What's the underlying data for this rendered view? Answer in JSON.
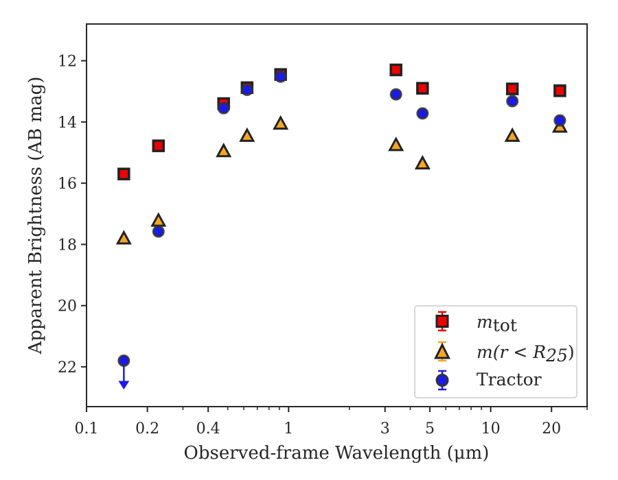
{
  "chart_data": {
    "type": "scatter",
    "xlabel": "Observed-frame Wavelength (μm)",
    "ylabel": "Apparent Brightness (AB mag)",
    "xscale": "log",
    "xlim": [
      0.1,
      30
    ],
    "ylim": [
      23.3,
      10.8
    ],
    "y_inverted": true,
    "xticks": [
      {
        "value": 0.1,
        "label": "0.1"
      },
      {
        "value": 0.2,
        "label": "0.2"
      },
      {
        "value": 0.4,
        "label": "0.4"
      },
      {
        "value": 1,
        "label": "1"
      },
      {
        "value": 3,
        "label": "3"
      },
      {
        "value": 5,
        "label": "5"
      },
      {
        "value": 10,
        "label": "10"
      },
      {
        "value": 20,
        "label": "20"
      }
    ],
    "yticks": [
      {
        "value": 12,
        "label": "12"
      },
      {
        "value": 14,
        "label": "14"
      },
      {
        "value": 16,
        "label": "16"
      },
      {
        "value": 18,
        "label": "18"
      },
      {
        "value": 20,
        "label": "20"
      },
      {
        "value": 22,
        "label": "22"
      }
    ],
    "grid": false,
    "legend_position": "lower-right",
    "series": [
      {
        "legend": "m_tot",
        "marker": "square",
        "color": "#ee0000",
        "edge_color": "#222222",
        "points": [
          {
            "x": 0.153,
            "y": 15.7
          },
          {
            "x": 0.227,
            "y": 14.78
          },
          {
            "x": 0.477,
            "y": 13.4
          },
          {
            "x": 0.623,
            "y": 12.88
          },
          {
            "x": 0.913,
            "y": 12.45
          },
          {
            "x": 3.4,
            "y": 12.3
          },
          {
            "x": 4.6,
            "y": 12.9
          },
          {
            "x": 12.8,
            "y": 12.92
          },
          {
            "x": 22.0,
            "y": 12.98
          }
        ]
      },
      {
        "legend": "m(r<R25)",
        "marker": "triangle",
        "color": "#f5a623",
        "edge_color": "#222222",
        "points": [
          {
            "x": 0.153,
            "y": 17.8
          },
          {
            "x": 0.227,
            "y": 17.22
          },
          {
            "x": 0.477,
            "y": 14.95
          },
          {
            "x": 0.623,
            "y": 14.45
          },
          {
            "x": 0.913,
            "y": 14.05
          },
          {
            "x": 3.4,
            "y": 14.75
          },
          {
            "x": 4.6,
            "y": 15.35
          },
          {
            "x": 12.8,
            "y": 14.45
          },
          {
            "x": 22.0,
            "y": 14.15
          }
        ]
      },
      {
        "legend": "Tractor",
        "marker": "circle",
        "color": "#1a1aee",
        "edge_color": "#333333",
        "points": [
          {
            "x": 0.153,
            "y": 21.8,
            "upper_limit": true
          },
          {
            "x": 0.227,
            "y": 17.58
          },
          {
            "x": 0.477,
            "y": 13.55
          },
          {
            "x": 0.623,
            "y": 12.95
          },
          {
            "x": 0.913,
            "y": 12.52
          },
          {
            "x": 3.4,
            "y": 13.1
          },
          {
            "x": 4.6,
            "y": 13.72
          },
          {
            "x": 12.8,
            "y": 13.32
          },
          {
            "x": 22.0,
            "y": 13.95
          }
        ]
      }
    ]
  },
  "legend": {
    "mtot_base": "m",
    "mtot_sub": "tot",
    "mr_prefix": "m(r < R",
    "mr_sub": "25",
    "mr_suffix": ")",
    "tractor": "Tractor"
  }
}
